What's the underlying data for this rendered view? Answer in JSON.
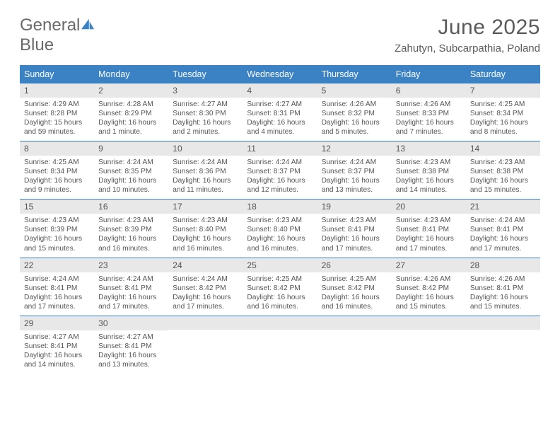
{
  "brand": {
    "part1": "General",
    "part2": "Blue",
    "logo_color": "#3b82c4"
  },
  "title": "June 2025",
  "location": "Zahutyn, Subcarpathia, Poland",
  "colors": {
    "accent": "#3b82c4",
    "text": "#5a5a5a",
    "daybar": "#e8e8e8"
  },
  "day_headers": [
    "Sunday",
    "Monday",
    "Tuesday",
    "Wednesday",
    "Thursday",
    "Friday",
    "Saturday"
  ],
  "weeks": [
    [
      {
        "n": "1",
        "sunrise": "4:29 AM",
        "sunset": "8:28 PM",
        "daylight": "15 hours and 59 minutes."
      },
      {
        "n": "2",
        "sunrise": "4:28 AM",
        "sunset": "8:29 PM",
        "daylight": "16 hours and 1 minute."
      },
      {
        "n": "3",
        "sunrise": "4:27 AM",
        "sunset": "8:30 PM",
        "daylight": "16 hours and 2 minutes."
      },
      {
        "n": "4",
        "sunrise": "4:27 AM",
        "sunset": "8:31 PM",
        "daylight": "16 hours and 4 minutes."
      },
      {
        "n": "5",
        "sunrise": "4:26 AM",
        "sunset": "8:32 PM",
        "daylight": "16 hours and 5 minutes."
      },
      {
        "n": "6",
        "sunrise": "4:26 AM",
        "sunset": "8:33 PM",
        "daylight": "16 hours and 7 minutes."
      },
      {
        "n": "7",
        "sunrise": "4:25 AM",
        "sunset": "8:34 PM",
        "daylight": "16 hours and 8 minutes."
      }
    ],
    [
      {
        "n": "8",
        "sunrise": "4:25 AM",
        "sunset": "8:34 PM",
        "daylight": "16 hours and 9 minutes."
      },
      {
        "n": "9",
        "sunrise": "4:24 AM",
        "sunset": "8:35 PM",
        "daylight": "16 hours and 10 minutes."
      },
      {
        "n": "10",
        "sunrise": "4:24 AM",
        "sunset": "8:36 PM",
        "daylight": "16 hours and 11 minutes."
      },
      {
        "n": "11",
        "sunrise": "4:24 AM",
        "sunset": "8:37 PM",
        "daylight": "16 hours and 12 minutes."
      },
      {
        "n": "12",
        "sunrise": "4:24 AM",
        "sunset": "8:37 PM",
        "daylight": "16 hours and 13 minutes."
      },
      {
        "n": "13",
        "sunrise": "4:23 AM",
        "sunset": "8:38 PM",
        "daylight": "16 hours and 14 minutes."
      },
      {
        "n": "14",
        "sunrise": "4:23 AM",
        "sunset": "8:38 PM",
        "daylight": "16 hours and 15 minutes."
      }
    ],
    [
      {
        "n": "15",
        "sunrise": "4:23 AM",
        "sunset": "8:39 PM",
        "daylight": "16 hours and 15 minutes."
      },
      {
        "n": "16",
        "sunrise": "4:23 AM",
        "sunset": "8:39 PM",
        "daylight": "16 hours and 16 minutes."
      },
      {
        "n": "17",
        "sunrise": "4:23 AM",
        "sunset": "8:40 PM",
        "daylight": "16 hours and 16 minutes."
      },
      {
        "n": "18",
        "sunrise": "4:23 AM",
        "sunset": "8:40 PM",
        "daylight": "16 hours and 16 minutes."
      },
      {
        "n": "19",
        "sunrise": "4:23 AM",
        "sunset": "8:41 PM",
        "daylight": "16 hours and 17 minutes."
      },
      {
        "n": "20",
        "sunrise": "4:23 AM",
        "sunset": "8:41 PM",
        "daylight": "16 hours and 17 minutes."
      },
      {
        "n": "21",
        "sunrise": "4:24 AM",
        "sunset": "8:41 PM",
        "daylight": "16 hours and 17 minutes."
      }
    ],
    [
      {
        "n": "22",
        "sunrise": "4:24 AM",
        "sunset": "8:41 PM",
        "daylight": "16 hours and 17 minutes."
      },
      {
        "n": "23",
        "sunrise": "4:24 AM",
        "sunset": "8:41 PM",
        "daylight": "16 hours and 17 minutes."
      },
      {
        "n": "24",
        "sunrise": "4:24 AM",
        "sunset": "8:42 PM",
        "daylight": "16 hours and 17 minutes."
      },
      {
        "n": "25",
        "sunrise": "4:25 AM",
        "sunset": "8:42 PM",
        "daylight": "16 hours and 16 minutes."
      },
      {
        "n": "26",
        "sunrise": "4:25 AM",
        "sunset": "8:42 PM",
        "daylight": "16 hours and 16 minutes."
      },
      {
        "n": "27",
        "sunrise": "4:26 AM",
        "sunset": "8:42 PM",
        "daylight": "16 hours and 15 minutes."
      },
      {
        "n": "28",
        "sunrise": "4:26 AM",
        "sunset": "8:41 PM",
        "daylight": "16 hours and 15 minutes."
      }
    ],
    [
      {
        "n": "29",
        "sunrise": "4:27 AM",
        "sunset": "8:41 PM",
        "daylight": "16 hours and 14 minutes."
      },
      {
        "n": "30",
        "sunrise": "4:27 AM",
        "sunset": "8:41 PM",
        "daylight": "16 hours and 13 minutes."
      },
      null,
      null,
      null,
      null,
      null
    ]
  ],
  "labels": {
    "sunrise": "Sunrise: ",
    "sunset": "Sunset: ",
    "daylight": "Daylight: "
  }
}
